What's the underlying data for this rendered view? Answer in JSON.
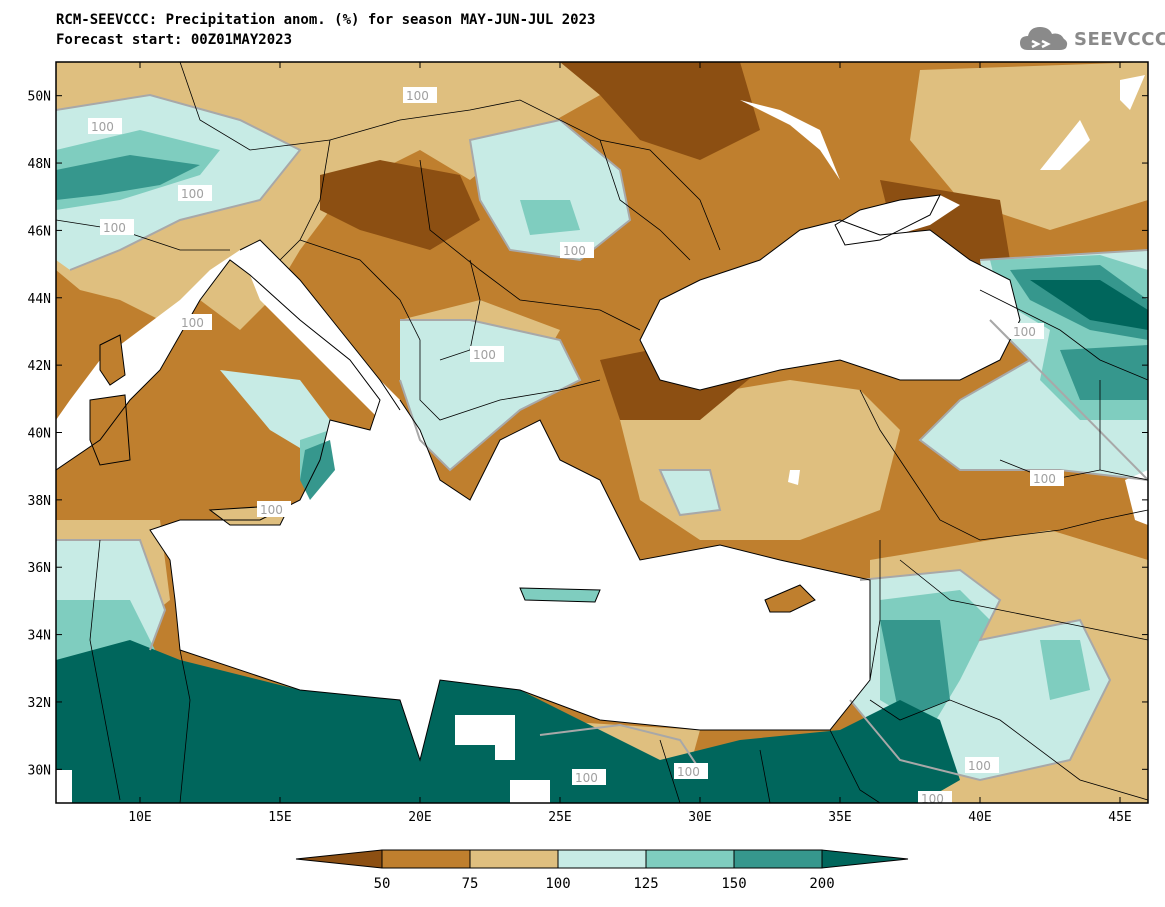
{
  "header": {
    "title_line1": "RCM-SEEVCCC: Precipitation anom. (%) for season MAY-JUN-JUL 2023",
    "title_line2": "Forecast start: 00Z01MAY2023"
  },
  "logo": {
    "text": "SEEVCCC",
    "icon": "cloud-icon"
  },
  "map": {
    "lon_range": [
      7,
      46
    ],
    "lat_range": [
      29,
      51
    ],
    "lon_ticks": [
      "10E",
      "15E",
      "20E",
      "25E",
      "30E",
      "35E",
      "40E",
      "45E"
    ],
    "lat_ticks": [
      "50N",
      "48N",
      "46N",
      "44N",
      "42N",
      "40N",
      "38N",
      "36N",
      "34N",
      "32N",
      "30N"
    ],
    "contour_labels": [
      "100",
      "100",
      "100",
      "100",
      "100",
      "100",
      "100",
      "100",
      "100",
      "100",
      "100",
      "100",
      "100",
      "100"
    ]
  },
  "colorbar": {
    "colors": [
      "#8c4f12",
      "#bf7f2e",
      "#dfbf7f",
      "#c7ebe5",
      "#7fcdbf",
      "#36978d",
      "#00665c"
    ],
    "labels": [
      "50",
      "75",
      "100",
      "125",
      "150",
      "200"
    ]
  },
  "palette": {
    "sea": "#ffffff",
    "border": "#000000",
    "contour": "#a8a8a8"
  }
}
